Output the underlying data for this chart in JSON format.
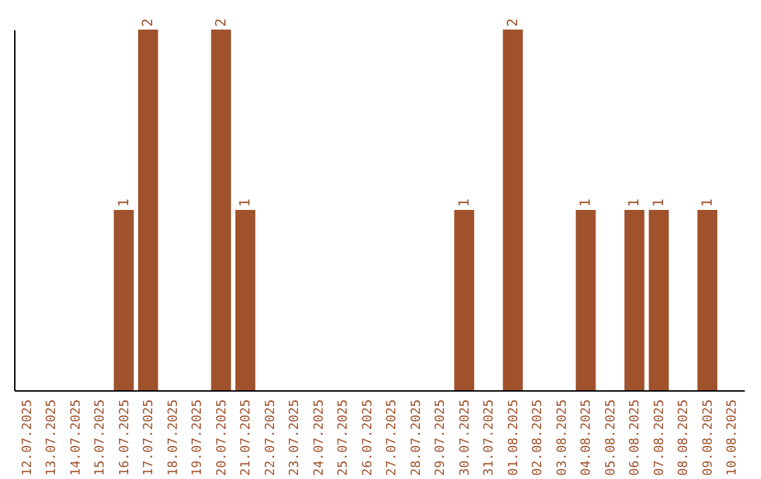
{
  "chart_data": {
    "type": "bar",
    "categories": [
      "12.07.2025",
      "13.07.2025",
      "14.07.2025",
      "15.07.2025",
      "16.07.2025",
      "17.07.2025",
      "18.07.2025",
      "19.07.2025",
      "20.07.2025",
      "21.07.2025",
      "22.07.2025",
      "23.07.2025",
      "24.07.2025",
      "25.07.2025",
      "26.07.2025",
      "27.07.2025",
      "28.07.2025",
      "29.07.2025",
      "30.07.2025",
      "31.07.2025",
      "01.08.2025",
      "02.08.2025",
      "03.08.2025",
      "04.08.2025",
      "05.08.2025",
      "06.08.2025",
      "07.08.2025",
      "08.08.2025",
      "09.08.2025",
      "10.08.2025"
    ],
    "values": [
      0,
      0,
      0,
      0,
      1,
      2,
      0,
      0,
      2,
      1,
      0,
      0,
      0,
      0,
      0,
      0,
      0,
      0,
      1,
      0,
      2,
      0,
      0,
      1,
      0,
      1,
      1,
      0,
      1,
      0
    ],
    "value_labels": [
      null,
      null,
      null,
      null,
      "1",
      "2",
      null,
      null,
      "2",
      "1",
      null,
      null,
      null,
      null,
      null,
      null,
      null,
      null,
      "1",
      null,
      "2",
      null,
      null,
      "1",
      null,
      "1",
      "1",
      null,
      "1",
      null
    ],
    "color": "#a0522d",
    "tick_labels": "x",
    "grid": false
  }
}
